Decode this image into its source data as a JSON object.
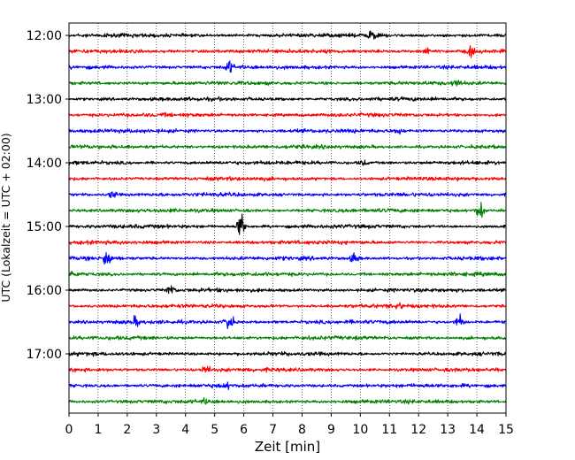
{
  "chart_data": {
    "type": "line",
    "title": "",
    "xlabel": "Zeit  [min]",
    "ylabel": "UTC (Lokalzeit = UTC + 02:00)",
    "xlim": [
      0,
      15
    ],
    "x_ticks": [
      0,
      1,
      2,
      3,
      4,
      5,
      6,
      7,
      8,
      9,
      10,
      11,
      12,
      13,
      14,
      15
    ],
    "x_tick_labels": [
      "0",
      "1",
      "2",
      "3",
      "4",
      "5",
      "6",
      "7",
      "8",
      "9",
      "10",
      "11",
      "12",
      "13",
      "14",
      "15"
    ],
    "y_tick_labels": [
      "12:00",
      "13:00",
      "14:00",
      "15:00",
      "16:00",
      "17:00"
    ],
    "grid": "vertical dotted",
    "trace_interval_minutes": 15,
    "trace_colors": [
      "#000000",
      "#ff0000",
      "#0000ff",
      "#008000"
    ],
    "traces": [
      {
        "start": "12:00",
        "color": "#000000",
        "events": [
          {
            "t": 10.4,
            "amp": 0.35
          }
        ]
      },
      {
        "start": "12:15",
        "color": "#ff0000",
        "events": [
          {
            "t": 12.3,
            "amp": 0.2
          },
          {
            "t": 13.8,
            "amp": 0.3
          }
        ]
      },
      {
        "start": "12:30",
        "color": "#0000ff",
        "events": [
          {
            "t": 5.5,
            "amp": 0.45
          }
        ]
      },
      {
        "start": "12:45",
        "color": "#008000",
        "events": [
          {
            "t": 13.3,
            "amp": 0.25
          }
        ]
      },
      {
        "start": "13:00",
        "color": "#000000",
        "events": []
      },
      {
        "start": "13:15",
        "color": "#ff0000",
        "events": []
      },
      {
        "start": "13:30",
        "color": "#0000ff",
        "events": [
          {
            "t": 11.3,
            "amp": 0.2
          }
        ]
      },
      {
        "start": "13:45",
        "color": "#008000",
        "events": []
      },
      {
        "start": "14:00",
        "color": "#000000",
        "events": [
          {
            "t": 10.1,
            "amp": 0.2
          }
        ]
      },
      {
        "start": "14:15",
        "color": "#ff0000",
        "events": []
      },
      {
        "start": "14:30",
        "color": "#0000ff",
        "events": [
          {
            "t": 1.5,
            "amp": 0.25
          }
        ]
      },
      {
        "start": "14:45",
        "color": "#008000",
        "events": [
          {
            "t": 14.1,
            "amp": 0.7
          }
        ]
      },
      {
        "start": "15:00",
        "color": "#000000",
        "events": [
          {
            "t": 5.9,
            "amp": 1.1
          }
        ]
      },
      {
        "start": "15:15",
        "color": "#ff0000",
        "events": []
      },
      {
        "start": "15:30",
        "color": "#0000ff",
        "events": [
          {
            "t": 1.3,
            "amp": 0.7
          },
          {
            "t": 9.8,
            "amp": 0.35
          }
        ]
      },
      {
        "start": "15:45",
        "color": "#008000",
        "events": [
          {
            "t": 0.15,
            "amp": 0.2
          }
        ]
      },
      {
        "start": "16:00",
        "color": "#000000",
        "events": [
          {
            "t": 3.5,
            "amp": 0.35
          }
        ]
      },
      {
        "start": "16:15",
        "color": "#ff0000",
        "events": [
          {
            "t": 11.3,
            "amp": 0.2
          }
        ]
      },
      {
        "start": "16:30",
        "color": "#0000ff",
        "events": [
          {
            "t": 2.3,
            "amp": 0.3
          },
          {
            "t": 5.5,
            "amp": 0.75
          },
          {
            "t": 13.4,
            "amp": 0.5
          }
        ]
      },
      {
        "start": "16:45",
        "color": "#008000",
        "events": []
      },
      {
        "start": "17:00",
        "color": "#000000",
        "events": []
      },
      {
        "start": "17:15",
        "color": "#ff0000",
        "events": [
          {
            "t": 4.7,
            "amp": 0.3
          }
        ]
      },
      {
        "start": "17:30",
        "color": "#0000ff",
        "events": [
          {
            "t": 5.4,
            "amp": 0.15
          }
        ]
      },
      {
        "start": "17:45",
        "color": "#008000",
        "events": [
          {
            "t": 4.7,
            "amp": 0.15
          }
        ]
      }
    ]
  }
}
